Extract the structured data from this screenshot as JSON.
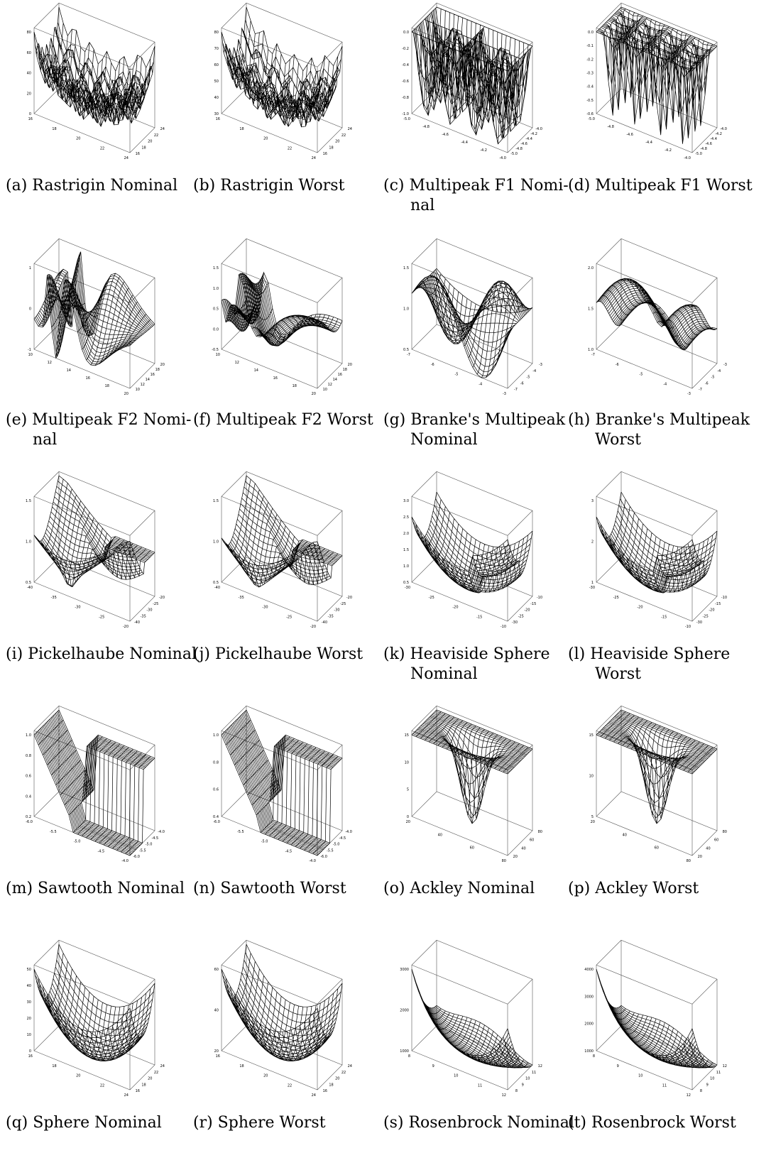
{
  "figure": {
    "panels": [
      {
        "letter": "(a)",
        "title": "Rastrigin Nominal",
        "line1": "(a) Rastrigin Nominal",
        "line2": "",
        "surface": "rastrigin",
        "z_ticks": [
          "0",
          "20",
          "40",
          "60",
          "80"
        ],
        "x_ticks": [
          "16",
          "18",
          "20",
          "22",
          "24"
        ],
        "y_ticks": [
          "16",
          "18",
          "20",
          "22",
          "24"
        ]
      },
      {
        "letter": "(b)",
        "title": "Rastrigin Worst",
        "line1": "(b) Rastrigin Worst",
        "line2": "",
        "surface": "rastrigin-worst",
        "z_ticks": [
          "30",
          "40",
          "50",
          "60",
          "70",
          "80"
        ],
        "x_ticks": [
          "16",
          "18",
          "20",
          "22",
          "24"
        ],
        "y_ticks": [
          "16",
          "18",
          "20",
          "22",
          "24"
        ]
      },
      {
        "letter": "(c)",
        "title": "Multipeak F1 Nominal",
        "line1": "(c) Multipeak F1 Nomi-",
        "line2": "nal",
        "surface": "multipeak1",
        "z_ticks": [
          "-1.0",
          "-0.8",
          "-0.6",
          "-0.4",
          "-0.2",
          "0.0"
        ],
        "x_ticks": [
          "-5.0",
          "-4.8",
          "-4.6",
          "-4.4",
          "-4.2",
          "-4.0"
        ],
        "y_ticks": [
          "-5.0",
          "-4.8",
          "-4.6",
          "-4.4",
          "-4.2",
          "-4.0"
        ]
      },
      {
        "letter": "(d)",
        "title": "Multipeak F1 Worst",
        "line1": "(d) Multipeak F1 Worst",
        "line2": "",
        "surface": "multipeak1-worst",
        "z_ticks": [
          "-0.6",
          "-0.5",
          "-0.4",
          "-0.3",
          "-0.2",
          "-0.1",
          "0.0"
        ],
        "x_ticks": [
          "-5.0",
          "-4.8",
          "-4.6",
          "-4.4",
          "-4.2",
          "-4.0"
        ],
        "y_ticks": [
          "-5.0",
          "-4.8",
          "-4.6",
          "-4.4",
          "-4.2",
          "-4.0"
        ]
      },
      {
        "letter": "(e)",
        "title": "Multipeak F2 Nominal",
        "line1": "(e) Multipeak F2 Nomi-",
        "line2": "nal",
        "surface": "multipeak2",
        "z_ticks": [
          "-1",
          "0",
          "1"
        ],
        "x_ticks": [
          "10",
          "12",
          "14",
          "16",
          "18",
          "20"
        ],
        "y_ticks": [
          "10",
          "12",
          "14",
          "16",
          "18",
          "20"
        ]
      },
      {
        "letter": "(f)",
        "title": "Multipeak F2 Worst",
        "line1": "(f) Multipeak F2 Worst",
        "line2": "",
        "surface": "multipeak2-worst",
        "z_ticks": [
          "-0.5",
          "0.0",
          "0.5",
          "1.0",
          "1.5"
        ],
        "x_ticks": [
          "10",
          "12",
          "14",
          "16",
          "18",
          "20"
        ],
        "y_ticks": [
          "10",
          "12",
          "14",
          "16",
          "18",
          "20"
        ]
      },
      {
        "letter": "(g)",
        "title": "Branke's Multipeak Nominal",
        "line1": "(g) Branke's    Multipeak",
        "line2": "Nominal",
        "surface": "branke",
        "z_ticks": [
          "0.5",
          "1.0",
          "1.5"
        ],
        "x_ticks": [
          "-7",
          "-6",
          "-5",
          "-4",
          "-3"
        ],
        "y_ticks": [
          "-7",
          "-6",
          "-5",
          "-4",
          "-3"
        ]
      },
      {
        "letter": "(h)",
        "title": "Branke's Multipeak Worst",
        "line1": "(h) Branke's    Multipeak",
        "line2": "Worst",
        "surface": "branke-worst",
        "z_ticks": [
          "1.0",
          "1.5",
          "2.0"
        ],
        "x_ticks": [
          "-7",
          "-6",
          "-5",
          "-4",
          "-3"
        ],
        "y_ticks": [
          "-7",
          "-6",
          "-5",
          "-4",
          "-3"
        ]
      },
      {
        "letter": "(i)",
        "title": "Pickelhaube Nominal",
        "line1": "(i) Pickelhaube Nominal",
        "line2": "",
        "surface": "pickelhaube",
        "z_ticks": [
          "0.5",
          "1.0",
          "1.5"
        ],
        "x_ticks": [
          "-40",
          "-35",
          "-30",
          "-25",
          "-20"
        ],
        "y_ticks": [
          "-40",
          "-35",
          "-30",
          "-25",
          "-20"
        ]
      },
      {
        "letter": "(j)",
        "title": "Pickelhaube Worst",
        "line1": "(j) Pickelhaube Worst",
        "line2": "",
        "surface": "pickelhaube-worst",
        "z_ticks": [
          "0.5",
          "1.0",
          "1.5"
        ],
        "x_ticks": [
          "-40",
          "-35",
          "-30",
          "-25",
          "-20"
        ],
        "y_ticks": [
          "-40",
          "-35",
          "-30",
          "-25",
          "-20"
        ]
      },
      {
        "letter": "(k)",
        "title": "Heaviside Sphere Nominal",
        "line1": "(k) Heaviside      Sphere",
        "line2": "Nominal",
        "surface": "heaviside",
        "z_ticks": [
          "0.5",
          "1.0",
          "1.5",
          "2.0",
          "2.5",
          "3.0"
        ],
        "x_ticks": [
          "-30",
          "-25",
          "-20",
          "-15",
          "-10"
        ],
        "y_ticks": [
          "-30",
          "-25",
          "-20",
          "-15",
          "-10"
        ]
      },
      {
        "letter": "(l)",
        "title": "Heaviside Sphere Worst",
        "line1": "(l) Heaviside      Sphere",
        "line2": "Worst",
        "surface": "heaviside-worst",
        "z_ticks": [
          "1",
          "2",
          "3"
        ],
        "x_ticks": [
          "-30",
          "-25",
          "-20",
          "-15",
          "-10"
        ],
        "y_ticks": [
          "-30",
          "-25",
          "-20",
          "-15",
          "-10"
        ]
      },
      {
        "letter": "(m)",
        "title": "Sawtooth Nominal",
        "line1": "(m) Sawtooth Nominal",
        "line2": "",
        "surface": "sawtooth",
        "z_ticks": [
          "0.2",
          "0.4",
          "0.6",
          "0.8",
          "1.0"
        ],
        "x_ticks": [
          "-6.0",
          "-5.5",
          "-5.0",
          "-4.5",
          "-4.0"
        ],
        "y_ticks": [
          "-6.0",
          "-5.5",
          "-5.0",
          "-4.5",
          "-4.0"
        ]
      },
      {
        "letter": "(n)",
        "title": "Sawtooth Worst",
        "line1": "(n) Sawtooth Worst",
        "line2": "",
        "surface": "sawtooth-worst",
        "z_ticks": [
          "0.4",
          "0.6",
          "0.8",
          "1.0"
        ],
        "x_ticks": [
          "-6.0",
          "-5.5",
          "-5.0",
          "-4.5",
          "-4.0"
        ],
        "y_ticks": [
          "-6.0",
          "-5.5",
          "-5.0",
          "-4.5",
          "-4.0"
        ]
      },
      {
        "letter": "(o)",
        "title": "Ackley Nominal",
        "line1": "(o) Ackley Nominal",
        "line2": "",
        "surface": "ackley",
        "z_ticks": [
          "0",
          "5",
          "10",
          "15"
        ],
        "x_ticks": [
          "20",
          "40",
          "60",
          "80"
        ],
        "y_ticks": [
          "20",
          "40",
          "60",
          "80"
        ]
      },
      {
        "letter": "(p)",
        "title": "Ackley Worst",
        "line1": "(p) Ackley Worst",
        "line2": "",
        "surface": "ackley-worst",
        "z_ticks": [
          "5",
          "10",
          "15"
        ],
        "x_ticks": [
          "20",
          "40",
          "60",
          "80"
        ],
        "y_ticks": [
          "20",
          "40",
          "60",
          "80"
        ]
      },
      {
        "letter": "(q)",
        "title": "Sphere Nominal",
        "line1": "(q) Sphere Nominal",
        "line2": "",
        "surface": "sphere",
        "z_ticks": [
          "0",
          "10",
          "20",
          "30",
          "40",
          "50"
        ],
        "x_ticks": [
          "16",
          "18",
          "20",
          "22",
          "24"
        ],
        "y_ticks": [
          "16",
          "18",
          "20",
          "22",
          "24"
        ]
      },
      {
        "letter": "(r)",
        "title": "Sphere Worst",
        "line1": "(r) Sphere Worst",
        "line2": "",
        "surface": "sphere-worst",
        "z_ticks": [
          "20",
          "40",
          "60"
        ],
        "x_ticks": [
          "16",
          "18",
          "20",
          "22",
          "24"
        ],
        "y_ticks": [
          "16",
          "18",
          "20",
          "22",
          "24"
        ]
      },
      {
        "letter": "(s)",
        "title": "Rosenbrock Nominal",
        "line1": "(s) Rosenbrock Nominal",
        "line2": "",
        "surface": "rosenbrock",
        "z_ticks": [
          "1000",
          "2000",
          "3000"
        ],
        "x_ticks": [
          "8",
          "9",
          "10",
          "11",
          "12"
        ],
        "y_ticks": [
          "8",
          "9",
          "10",
          "11",
          "12"
        ]
      },
      {
        "letter": "(t)",
        "title": "Rosenbrock Worst",
        "line1": "(t) Rosenbrock Worst",
        "line2": "",
        "surface": "rosenbrock-worst",
        "z_ticks": [
          "1000",
          "2000",
          "3000",
          "4000"
        ],
        "x_ticks": [
          "8",
          "9",
          "10",
          "11",
          "12"
        ],
        "y_ticks": [
          "8",
          "9",
          "10",
          "11",
          "12"
        ]
      }
    ]
  }
}
